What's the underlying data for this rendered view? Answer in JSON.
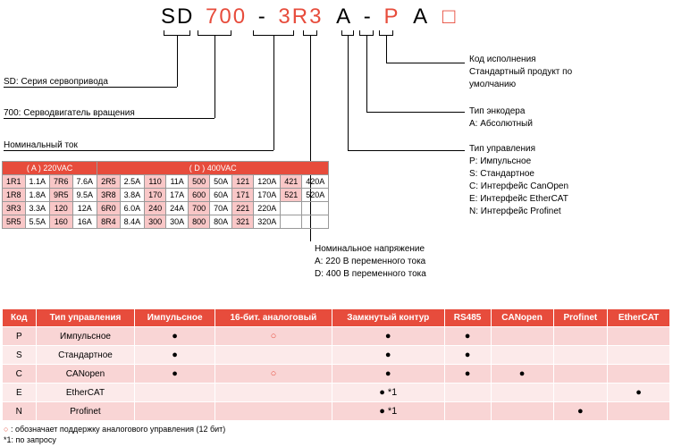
{
  "part": {
    "p0": "SD",
    "p1": "700",
    "d1": "-",
    "p2": "3R3",
    "p3": "A",
    "d2": "-",
    "p4": "P",
    "p5": "A",
    "p6": "□"
  },
  "left": {
    "l1": "SD: Серия сервопривода",
    "l2": "700: Серводвигатель вращения",
    "l3": "Номинальный ток"
  },
  "right": {
    "r1a": "Код исполнения",
    "r1b": "Стандартный продукт по",
    "r1c": "умолчанию",
    "r2a": "Тип энкодера",
    "r2b": "A: Абсолютный",
    "r3a": "Тип управления",
    "r3b": "P: Импульсное",
    "r3c": "S: Стандартное",
    "r3d": "C: Интерфейс CanOpen",
    "r3e": "E: Интерфейс EtherCAT",
    "r3f": "N: Интерфейс Profinet",
    "r4a": "Номинальное напряжение",
    "r4b": "A: 220 В переменного тока",
    "r4c": "D: 400 В переменного тока"
  },
  "rated": {
    "h1": "( A ) 220VAC",
    "h2": "( D ) 400VAC",
    "rows": [
      [
        "1R1",
        "1.1A",
        "7R6",
        "7.6A",
        "2R5",
        "2.5A",
        "110",
        "11A",
        "500",
        "50A",
        "121",
        "120A",
        "421",
        "420A"
      ],
      [
        "1R8",
        "1.8A",
        "9R5",
        "9.5A",
        "3R8",
        "3.8A",
        "170",
        "17A",
        "600",
        "60A",
        "171",
        "170A",
        "521",
        "520A"
      ],
      [
        "3R3",
        "3.3A",
        "120",
        "12A",
        "6R0",
        "6.0A",
        "240",
        "24A",
        "700",
        "70A",
        "221",
        "220A",
        "",
        ""
      ],
      [
        "5R5",
        "5.5A",
        "160",
        "16A",
        "8R4",
        "8.4A",
        "300",
        "30A",
        "800",
        "80A",
        "321",
        "320A",
        "",
        ""
      ]
    ],
    "pinkcols": [
      0,
      2,
      4,
      6,
      8,
      10,
      12
    ]
  },
  "ctrl": {
    "headers": [
      "Код",
      "Тип управления",
      "Импульсное",
      "16-бит. аналоговый",
      "Замкнутый контур",
      "RS485",
      "CANopen",
      "Profinet",
      "EtherCAT"
    ],
    "rows": [
      {
        "code": "P",
        "name": "Импульсное",
        "marks": [
          "●",
          "○",
          "●",
          "●",
          "",
          "",
          ""
        ]
      },
      {
        "code": "S",
        "name": "Стандартное",
        "marks": [
          "●",
          "",
          "●",
          "●",
          "",
          "",
          ""
        ]
      },
      {
        "code": "C",
        "name": "CANopen",
        "marks": [
          "●",
          "○",
          "●",
          "●",
          "●",
          "",
          ""
        ]
      },
      {
        "code": "E",
        "name": "EtherCAT",
        "marks": [
          "",
          "",
          "● *1",
          "",
          "",
          "",
          "●"
        ]
      },
      {
        "code": "N",
        "name": "Profinet",
        "marks": [
          "",
          "",
          "● *1",
          "",
          "",
          "●",
          ""
        ]
      }
    ]
  },
  "legend": {
    "a": "○ : обозначает поддержку аналогового управления (12 бит)",
    "b": "*1: по запросу"
  }
}
